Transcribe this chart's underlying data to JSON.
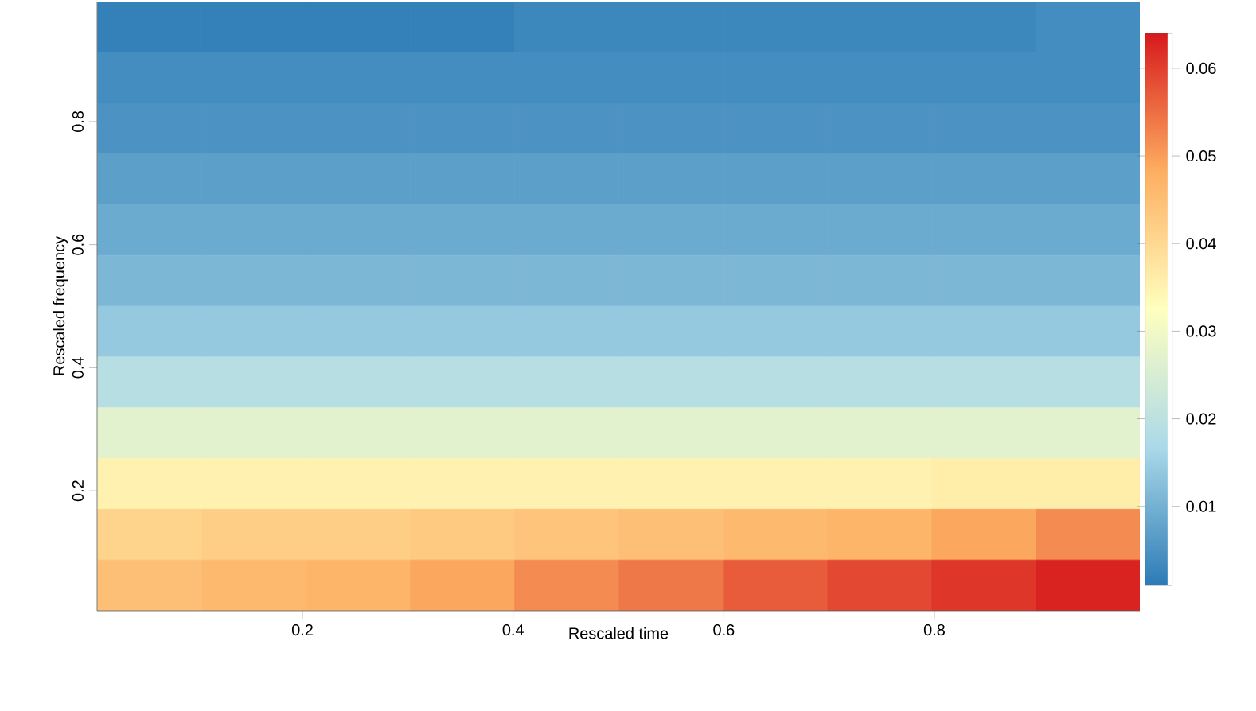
{
  "chart_data": {
    "type": "heatmap",
    "xlabel": "Rescaled time",
    "ylabel": "Rescaled frequency",
    "xlim": [
      0.005,
      0.995
    ],
    "ylim": [
      0.005,
      0.995
    ],
    "xticks": [
      0.2,
      0.4,
      0.6,
      0.8
    ],
    "yticks": [
      0.2,
      0.4,
      0.6,
      0.8
    ],
    "x": [
      0.055,
      0.154,
      0.253,
      0.352,
      0.451,
      0.55,
      0.649,
      0.748,
      0.847,
      0.946
    ],
    "y": [
      0.954,
      0.871,
      0.789,
      0.706,
      0.624,
      0.541,
      0.459,
      0.376,
      0.294,
      0.211,
      0.129,
      0.046
    ],
    "cells": [
      [
        0.002,
        0.002,
        0.002,
        0.002,
        0.003,
        0.003,
        0.003,
        0.003,
        0.003,
        0.004
      ],
      [
        0.004,
        0.004,
        0.004,
        0.004,
        0.004,
        0.004,
        0.004,
        0.004,
        0.004,
        0.004
      ],
      [
        0.005,
        0.005,
        0.005,
        0.005,
        0.005,
        0.005,
        0.005,
        0.005,
        0.005,
        0.005
      ],
      [
        0.007,
        0.007,
        0.007,
        0.007,
        0.007,
        0.007,
        0.007,
        0.007,
        0.007,
        0.007
      ],
      [
        0.009,
        0.009,
        0.009,
        0.009,
        0.009,
        0.009,
        0.009,
        0.009,
        0.009,
        0.009
      ],
      [
        0.011,
        0.011,
        0.011,
        0.011,
        0.011,
        0.011,
        0.011,
        0.011,
        0.011,
        0.011
      ],
      [
        0.014,
        0.014,
        0.014,
        0.014,
        0.014,
        0.014,
        0.014,
        0.014,
        0.014,
        0.014
      ],
      [
        0.019,
        0.019,
        0.019,
        0.019,
        0.019,
        0.019,
        0.019,
        0.019,
        0.019,
        0.019
      ],
      [
        0.027,
        0.027,
        0.027,
        0.027,
        0.027,
        0.027,
        0.027,
        0.027,
        0.027,
        0.027
      ],
      [
        0.035,
        0.035,
        0.035,
        0.035,
        0.035,
        0.035,
        0.035,
        0.035,
        0.036,
        0.036
      ],
      [
        0.041,
        0.042,
        0.042,
        0.043,
        0.044,
        0.045,
        0.046,
        0.047,
        0.049,
        0.052
      ],
      [
        0.045,
        0.046,
        0.047,
        0.049,
        0.052,
        0.054,
        0.057,
        0.059,
        0.061,
        0.063
      ]
    ],
    "clim": [
      0.001,
      0.064
    ],
    "cticks": [
      0.01,
      0.02,
      0.03,
      0.04,
      0.05,
      0.06
    ]
  }
}
